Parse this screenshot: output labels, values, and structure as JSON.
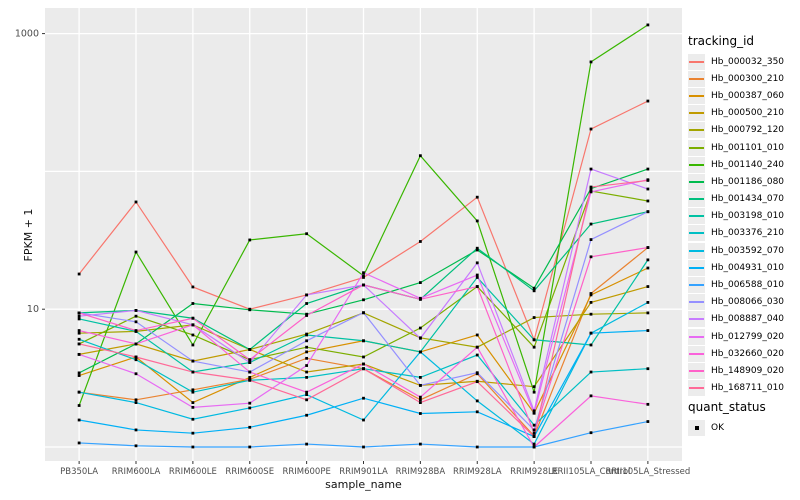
{
  "chart_data": {
    "type": "line",
    "title": "",
    "xlabel": "sample_name",
    "ylabel": "FPKM + 1",
    "y_scale": "log10",
    "y_labeled_ticks": [
      1000,
      10
    ],
    "y_gridlines": [
      1,
      10,
      100,
      1000
    ],
    "ylim": [
      0.9,
      1500
    ],
    "grid": true,
    "panel_bg": "#ebebeb",
    "grid_color": "#ffffff",
    "point_color": "#000000",
    "tick_label_color": "#4d4d4d",
    "categories": [
      "PB350LA",
      "RRIM600LA",
      "RRIM600LE",
      "RRIM600SE",
      "RRIM600PE",
      "RRIM901LA",
      "RRIM928BA",
      "RRIM928LA",
      "RRIM928LE",
      "RRII105LA_Control",
      "RRII105LA_Stressed"
    ],
    "series": [
      {
        "name": "Hb_000032_350",
        "color": "#F8766D",
        "values": [
          18,
          60,
          14.5,
          10,
          12.7,
          17,
          31,
          65,
          6,
          203,
          324
        ]
      },
      {
        "name": "Hb_000300_210",
        "color": "#EA8331",
        "values": [
          2.5,
          2.2,
          2.6,
          3.1,
          4.4,
          3.7,
          2.2,
          3.4,
          1.2,
          13,
          28
        ]
      },
      {
        "name": "Hb_000387_060",
        "color": "#D89000",
        "values": [
          3.3,
          4.5,
          2.1,
          3.2,
          4.9,
          5.9,
          4.9,
          6.5,
          1.76,
          12.7,
          19.9
        ]
      },
      {
        "name": "Hb_000500_210",
        "color": "#C09B00",
        "values": [
          4.7,
          5.6,
          4.2,
          5.1,
          3.5,
          4.0,
          2.8,
          3.0,
          2.74,
          11.2,
          14.6
        ]
      },
      {
        "name": "Hb_000792_120",
        "color": "#A3A500",
        "values": [
          6.7,
          6.9,
          7.7,
          5.1,
          6.6,
          9.4,
          6.2,
          5.3,
          8.7,
          9.2,
          9.4
        ]
      },
      {
        "name": "Hb_001101_010",
        "color": "#7CAE00",
        "values": [
          5.6,
          8.9,
          6.5,
          4.3,
          5.3,
          4.5,
          7.3,
          14.6,
          5.3,
          72,
          61
        ]
      },
      {
        "name": "Hb_001140_240",
        "color": "#39B600",
        "values": [
          2.0,
          26,
          5.5,
          31.8,
          35.3,
          17.5,
          130,
          43.7,
          2.5,
          623,
          1156
        ]
      },
      {
        "name": "Hb_001186_080",
        "color": "#00BB4E",
        "values": [
          3.45,
          5.6,
          11,
          9.9,
          9.2,
          11.7,
          15.6,
          26.9,
          14.2,
          75,
          104
        ]
      },
      {
        "name": "Hb_001434_070",
        "color": "#00BF7D",
        "values": [
          9.4,
          9.8,
          8.6,
          5.1,
          11,
          15,
          11.8,
          27.7,
          13.6,
          41.5,
          51
        ]
      },
      {
        "name": "Hb_003198_010",
        "color": "#00C1A3",
        "values": [
          8.5,
          6.9,
          3.5,
          4.1,
          6.5,
          5.9,
          4.9,
          17,
          6.0,
          5.5,
          22.8
        ]
      },
      {
        "name": "Hb_003376_210",
        "color": "#00BFC4",
        "values": [
          6.05,
          4.3,
          2.5,
          3.05,
          3.2,
          3.7,
          3.2,
          4.65,
          1.44,
          3.5,
          3.7
        ]
      },
      {
        "name": "Hb_003592_070",
        "color": "#00BAE0",
        "values": [
          2.5,
          2.1,
          1.59,
          1.92,
          2.4,
          1.57,
          4.9,
          2.16,
          1.05,
          6.7,
          11.2
        ]
      },
      {
        "name": "Hb_004931_010",
        "color": "#00B0F6",
        "values": [
          1.57,
          1.33,
          1.26,
          1.39,
          1.7,
          2.26,
          1.75,
          1.8,
          1.19,
          6.7,
          7.0
        ]
      },
      {
        "name": "Hb_006588_010",
        "color": "#35A2FF",
        "values": [
          1.07,
          1.02,
          1.0,
          1.0,
          1.05,
          1.0,
          1.05,
          1.0,
          1.0,
          1.27,
          1.53
        ]
      },
      {
        "name": "Hb_008066_030",
        "color": "#9590FF",
        "values": [
          9.4,
          8.1,
          4.2,
          3.5,
          5.9,
          9.45,
          2.8,
          3.46,
          1.33,
          32,
          51
        ]
      },
      {
        "name": "Hb_008887_040",
        "color": "#C77CFF",
        "values": [
          8.9,
          9.8,
          7.7,
          4.1,
          12.7,
          15,
          6.15,
          21.7,
          1.83,
          104,
          74.5
        ]
      },
      {
        "name": "Hb_012799_020",
        "color": "#E76BF3",
        "values": [
          4.7,
          3.4,
          1.94,
          2.08,
          3.9,
          18.4,
          12,
          17.7,
          1.76,
          71,
          87
        ]
      },
      {
        "name": "Hb_032660_020",
        "color": "#FA62DB",
        "values": [
          7.0,
          5.6,
          7.7,
          3.5,
          2.5,
          4.0,
          2.3,
          5.3,
          1.0,
          2.35,
          2.04
        ]
      },
      {
        "name": "Hb_148909_020",
        "color": "#FF61C9",
        "values": [
          9.4,
          7.0,
          8.6,
          4.3,
          9.0,
          15,
          11.8,
          14.6,
          1.26,
          24,
          28
        ]
      },
      {
        "name": "Hb_168711_010",
        "color": "#FF6A98",
        "values": [
          5.6,
          4.5,
          3.5,
          3.05,
          2.2,
          3.7,
          2.1,
          2.98,
          1.19,
          77,
          86
        ]
      }
    ],
    "legend": {
      "position": "right",
      "tracking_title": "tracking_id",
      "quant_title": "quant_status",
      "quant_value": "OK"
    }
  }
}
